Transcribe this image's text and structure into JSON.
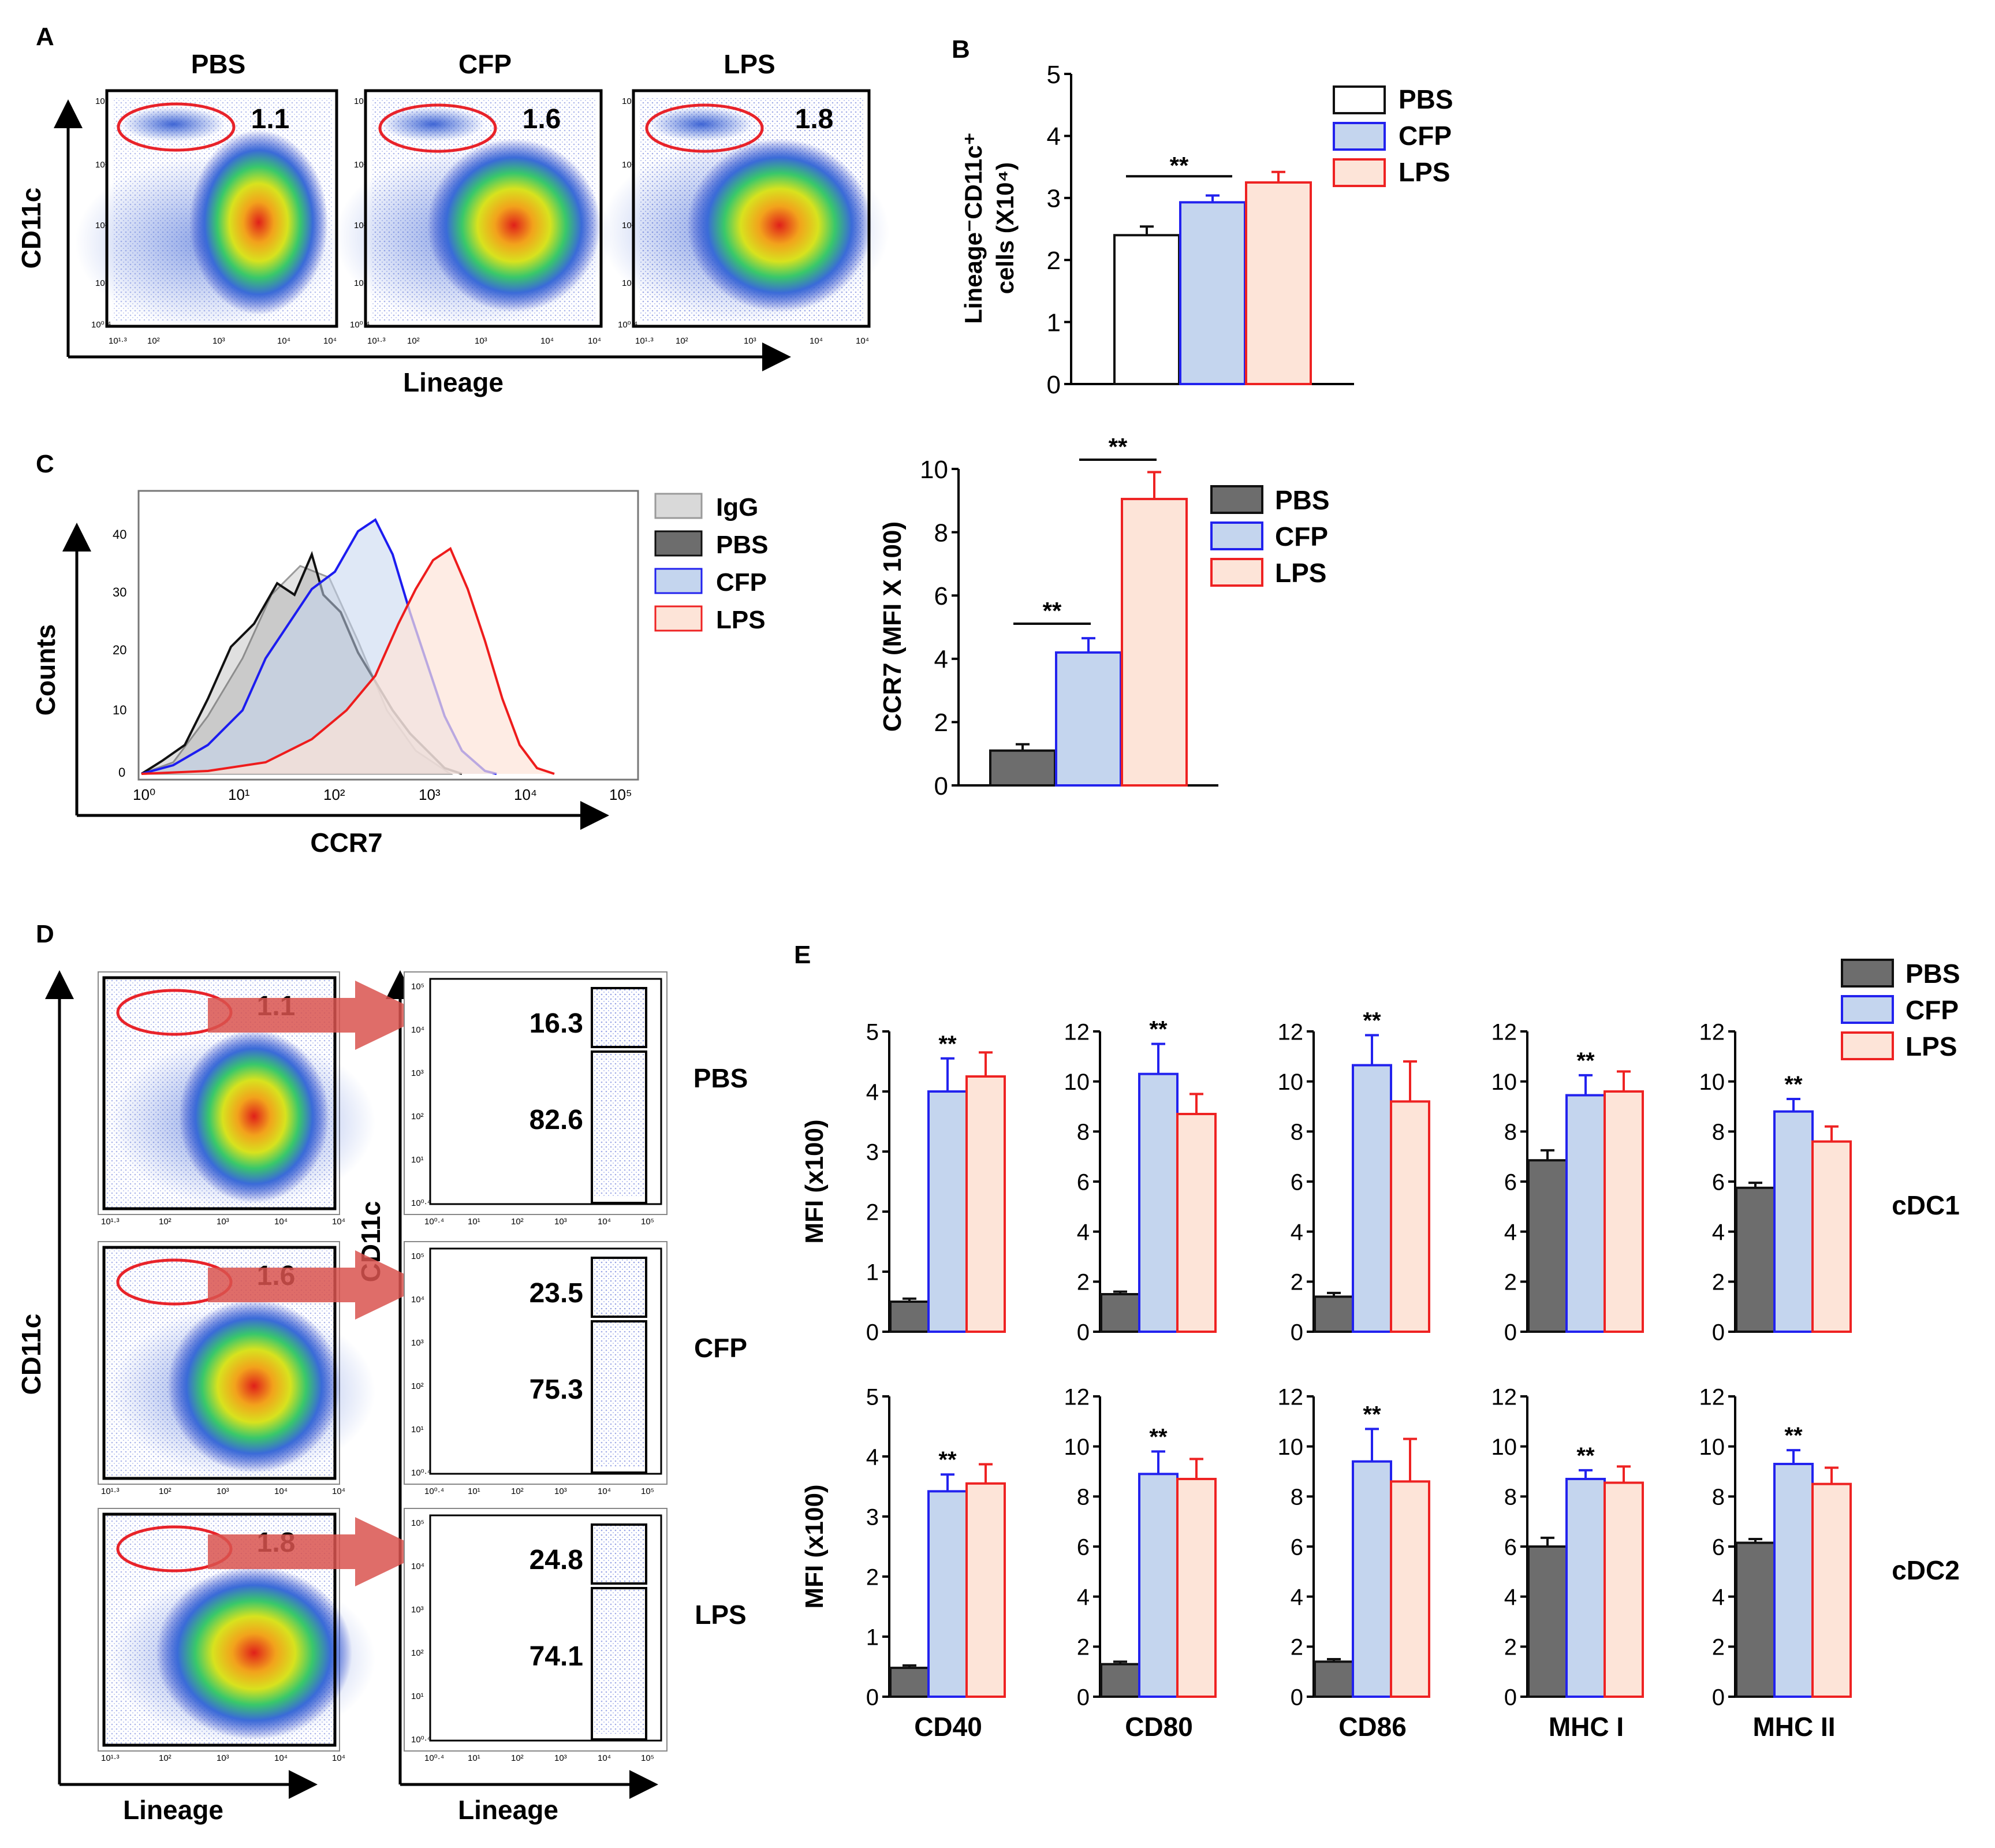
{
  "colors": {
    "pbs_white": "#ffffff",
    "pbs_gray": "#6d6d6d",
    "cfp_fill": "#c4d5ee",
    "cfp_edge": "#2222ee",
    "lps_fill": "#fde4d8",
    "lps_edge": "#ee2222",
    "gate": "#e8232a",
    "arrow": "#d9534f",
    "igg_fill": "#d9d9d9",
    "igg_edge": "#9a9a9a"
  },
  "panels": {
    "a": "A",
    "b": "B",
    "c": "C",
    "d": "D",
    "e": "E"
  },
  "panel_a": {
    "groups": [
      "PBS",
      "CFP",
      "LPS"
    ],
    "values": [
      "1.1",
      "1.6",
      "1.8"
    ],
    "y_label": "CD11c",
    "x_label": "Lineage",
    "y_ticks": [
      "10⁴",
      "10³",
      "10²",
      "10¹",
      "10⁰·⁴"
    ],
    "x_ticks": [
      "10¹·³",
      "10²",
      "10³",
      "10⁴",
      "10⁴"
    ]
  },
  "panel_c_hist": {
    "y_label": "Counts",
    "x_label": "CCR7",
    "y_ticks": [
      "0",
      "10",
      "20",
      "30",
      "40"
    ],
    "x_ticks": [
      "10⁰",
      "10¹",
      "10²",
      "10³",
      "10⁴",
      "10⁵"
    ],
    "legend": [
      "IgG",
      "PBS",
      "CFP",
      "LPS"
    ]
  },
  "panel_d": {
    "rows": [
      "PBS",
      "CFP",
      "LPS"
    ],
    "gate_values": [
      "1.1",
      "1.6",
      "1.8"
    ],
    "upper": [
      "16.3",
      "23.5",
      "24.8"
    ],
    "lower": [
      "82.6",
      "75.3",
      "74.1"
    ],
    "y_label": "CD11c",
    "x_label": "Lineage",
    "x_ticks_left": [
      "10¹·³",
      "10²",
      "10³",
      "10⁴",
      "10⁴"
    ],
    "x_ticks_right": [
      "10⁰·⁴",
      "10¹",
      "10²",
      "10³",
      "10⁴",
      "10⁵"
    ],
    "y_ticks_right": [
      "10⁵",
      "10⁴",
      "10³",
      "10²",
      "10¹",
      "10⁰·⁴"
    ]
  },
  "chart_data": [
    {
      "id": "B",
      "type": "bar",
      "categories": [
        "PBS",
        "CFP",
        "LPS"
      ],
      "values": [
        2.4,
        2.93,
        3.25
      ],
      "errors": [
        0.14,
        0.11,
        0.17
      ],
      "ylabel": "Lineage⁻CD11c⁺ cells (X10⁴)",
      "ylim": [
        0,
        5
      ],
      "yticks": [
        0,
        1,
        2,
        3,
        4,
        5
      ],
      "significance": [
        {
          "from": 0,
          "to": 1,
          "label": "**"
        }
      ],
      "legend": [
        "PBS",
        "CFP",
        "LPS"
      ]
    },
    {
      "id": "C",
      "type": "bar",
      "categories": [
        "PBS",
        "CFP",
        "LPS"
      ],
      "values": [
        1.1,
        4.2,
        9.05
      ],
      "errors": [
        0.2,
        0.45,
        0.85
      ],
      "ylabel": "CCR7 (MFI X 100)",
      "ylim": [
        0,
        10
      ],
      "yticks": [
        0,
        2,
        4,
        6,
        8,
        10
      ],
      "significance": [
        {
          "from": 0,
          "to": 1,
          "label": "**"
        },
        {
          "from": 1,
          "to": 2,
          "label": "**"
        }
      ],
      "legend": [
        "PBS",
        "CFP",
        "LPS"
      ]
    },
    {
      "id": "E",
      "type": "bar",
      "series_names": [
        "PBS",
        "CFP",
        "LPS"
      ],
      "markers": [
        "CD40",
        "CD80",
        "CD86",
        "MHC I",
        "MHC II"
      ],
      "ylim": [
        [
          0,
          5
        ],
        [
          0,
          12
        ],
        [
          0,
          12
        ],
        [
          0,
          12
        ],
        [
          0,
          12
        ]
      ],
      "yticks": [
        [
          0,
          1,
          2,
          3,
          4,
          5
        ],
        [
          0,
          2,
          4,
          6,
          8,
          10,
          12
        ],
        [
          0,
          2,
          4,
          6,
          8,
          10,
          12
        ],
        [
          0,
          2,
          4,
          6,
          8,
          10,
          12
        ],
        [
          0,
          2,
          4,
          6,
          8,
          10,
          12
        ]
      ],
      "ylabel": "MFI (x100)",
      "significance_label": "**",
      "rows": [
        {
          "name": "cDC1",
          "values": [
            [
              0.5,
              4.0,
              4.25
            ],
            [
              1.5,
              10.3,
              8.7
            ],
            [
              1.4,
              10.65,
              9.2
            ],
            [
              6.85,
              9.45,
              9.6
            ],
            [
              5.75,
              8.8,
              7.6
            ]
          ],
          "errors": [
            [
              0.05,
              0.55,
              0.4
            ],
            [
              0.1,
              1.2,
              0.8
            ],
            [
              0.15,
              1.2,
              1.6
            ],
            [
              0.4,
              0.8,
              0.8
            ],
            [
              0.2,
              0.5,
              0.6
            ]
          ]
        },
        {
          "name": "cDC2",
          "values": [
            [
              0.48,
              3.42,
              3.55
            ],
            [
              1.3,
              8.9,
              8.7
            ],
            [
              1.4,
              9.4,
              8.6
            ],
            [
              6.0,
              8.7,
              8.55
            ],
            [
              6.15,
              9.3,
              8.5
            ]
          ],
          "errors": [
            [
              0.04,
              0.28,
              0.32
            ],
            [
              0.1,
              0.9,
              0.8
            ],
            [
              0.1,
              1.3,
              1.7
            ],
            [
              0.35,
              0.35,
              0.65
            ],
            [
              0.15,
              0.55,
              0.65
            ]
          ]
        }
      ]
    }
  ]
}
